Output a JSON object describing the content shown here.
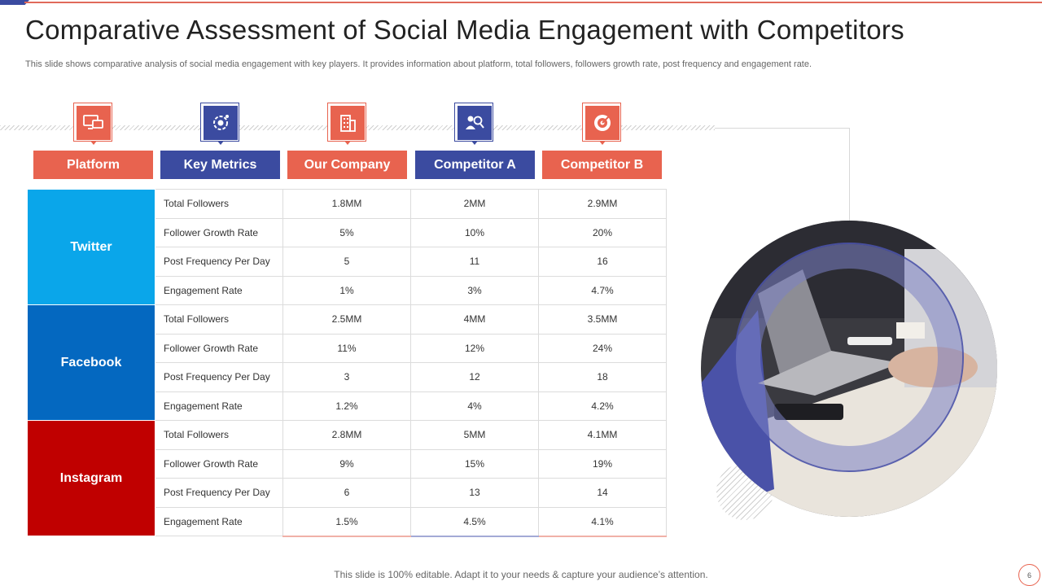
{
  "title": "Comparative Assessment of Social Media Engagement with Competitors",
  "subtitle": "This slide shows comparative analysis of social media engagement with key players. It provides information about platform, total followers, followers growth rate, post frequency and engagement rate.",
  "headers": {
    "platform": "Platform",
    "metrics": "Key Metrics",
    "company": "Our Company",
    "competitor_a": "Competitor A",
    "competitor_b": "Competitor B"
  },
  "icons": [
    "monitor-icon",
    "metrics-gear-icon",
    "building-icon",
    "people-search-icon",
    "target-icon"
  ],
  "platforms": [
    {
      "name": "Twitter",
      "rows": [
        {
          "metric": "Total Followers",
          "company": "1.8MM",
          "a": "2MM",
          "b": "2.9MM"
        },
        {
          "metric": "Follower Growth Rate",
          "company": "5%",
          "a": "10%",
          "b": "20%"
        },
        {
          "metric": "Post Frequency Per Day",
          "company": "5",
          "a": "11",
          "b": "16"
        },
        {
          "metric": "Engagement Rate",
          "company": "1%",
          "a": "3%",
          "b": "4.7%"
        }
      ]
    },
    {
      "name": "Facebook",
      "rows": [
        {
          "metric": "Total Followers",
          "company": "2.5MM",
          "a": "4MM",
          "b": "3.5MM"
        },
        {
          "metric": "Follower Growth Rate",
          "company": "11%",
          "a": "12%",
          "b": "24%"
        },
        {
          "metric": "Post Frequency Per Day",
          "company": "3",
          "a": "12",
          "b": "18"
        },
        {
          "metric": "Engagement Rate",
          "company": "1.2%",
          "a": "4%",
          "b": "4.2%"
        }
      ]
    },
    {
      "name": "Instagram",
      "rows": [
        {
          "metric": "Total Followers",
          "company": "2.8MM",
          "a": "5MM",
          "b": "4.1MM"
        },
        {
          "metric": "Follower Growth Rate",
          "company": "9%",
          "a": "15%",
          "b": "19%"
        },
        {
          "metric": "Post Frequency Per Day",
          "company": "6",
          "a": "13",
          "b": "14"
        },
        {
          "metric": "Engagement Rate",
          "company": "1.5%",
          "a": "4.5%",
          "b": "4.1%"
        }
      ]
    }
  ],
  "footer": "This slide is 100% editable. Adapt it to your needs & capture your audience’s attention.",
  "page_number": "6",
  "colors": {
    "accent_red": "#e8634f",
    "accent_blue": "#3b4ba0",
    "twitter": "#0aa6ea",
    "facebook": "#0468c0",
    "instagram": "#c00000"
  }
}
